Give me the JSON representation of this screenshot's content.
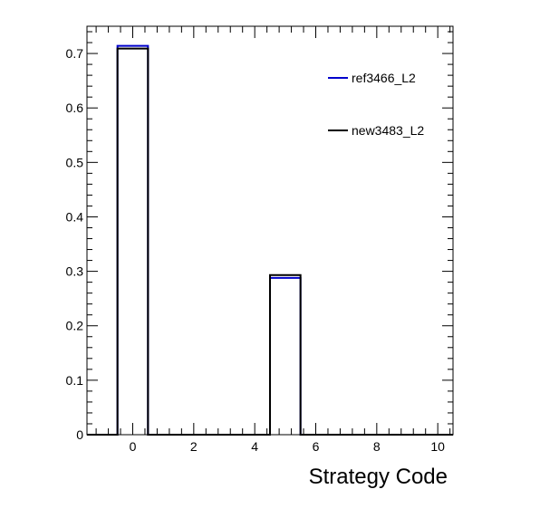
{
  "chart_data": {
    "type": "bar",
    "title": "",
    "xlabel": "Strategy Code",
    "ylabel": "",
    "xlim": [
      -1.5,
      10.5
    ],
    "ylim": [
      0,
      0.75
    ],
    "bin_width": 1,
    "x_ticks": [
      0,
      2,
      4,
      6,
      8,
      10
    ],
    "x_tick_labels": [
      "0",
      "2",
      "4",
      "6",
      "8",
      "10"
    ],
    "y_ticks": [
      0,
      0.1,
      0.2,
      0.3,
      0.4,
      0.5,
      0.6,
      0.7
    ],
    "y_tick_labels": [
      "0",
      "0.1",
      "0.2",
      "0.3",
      "0.4",
      "0.5",
      "0.6",
      "0.7"
    ],
    "grid": false,
    "legend_placement": "top-right",
    "x": [
      -1,
      0,
      1,
      2,
      3,
      4,
      5,
      6,
      7,
      8,
      9,
      10
    ],
    "series": [
      {
        "name": "ref3466_L2",
        "color": "#0000cc",
        "values": [
          0,
          0.714,
          0,
          0,
          0,
          0,
          0.288,
          0,
          0,
          0,
          0,
          0
        ]
      },
      {
        "name": "new3483_L2",
        "color": "#000000",
        "values": [
          0,
          0.709,
          0,
          0,
          0,
          0,
          0.293,
          0,
          0,
          0,
          0,
          0
        ]
      }
    ]
  }
}
